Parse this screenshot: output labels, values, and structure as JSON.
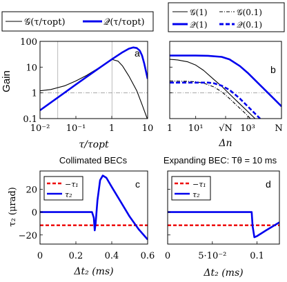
{
  "chart_data": [
    {
      "id": "a",
      "type": "line",
      "panel_label": "a",
      "ylabel": "Gain",
      "xlabel": "τ/τopt",
      "xscale": "log",
      "yscale": "log",
      "xlim": [
        0.01,
        10
      ],
      "ylim": [
        0.1,
        100
      ],
      "x_ticks": [
        "10⁻²",
        "10⁻¹",
        "1",
        "10"
      ],
      "y_ticks": [
        "0.1",
        "1",
        "10",
        "100"
      ],
      "grid": "vertical lines at 0.1 and 1",
      "legend_position": "top (outside)",
      "legend": [
        "𝒢(τ/τopt)",
        "𝒬(τ/τopt)"
      ],
      "reference_line": {
        "y": 1,
        "style": "dash-dot gray"
      },
      "series": [
        {
          "name": "𝒢(τ/τopt)",
          "color": "#000000",
          "x": [
            0.01,
            0.02,
            0.05,
            0.1,
            0.2,
            0.5,
            1,
            1.5,
            2,
            3,
            5,
            7,
            10
          ],
          "y": [
            1.2,
            1.35,
            1.9,
            2.9,
            4.8,
            10.5,
            20,
            17,
            11,
            4.5,
            1.2,
            0.35,
            0.09
          ]
        },
        {
          "name": "𝒬(τ/τopt)",
          "color": "#0000ee",
          "x": [
            0.01,
            0.02,
            0.05,
            0.1,
            0.2,
            0.5,
            1,
            2,
            3,
            4,
            5,
            6,
            7,
            8,
            10
          ],
          "y": [
            0.21,
            0.42,
            1.05,
            2.1,
            4.2,
            10.3,
            20,
            38,
            52,
            58,
            55,
            44,
            28,
            14,
            3.5
          ]
        }
      ]
    },
    {
      "id": "b",
      "type": "line",
      "panel_label": "b",
      "xlabel": "Δn",
      "xscale": "log",
      "yscale": "log",
      "xlim": [
        1,
        20000
      ],
      "ylim": [
        0.1,
        100
      ],
      "x_ticks": [
        "1",
        "10¹",
        "√N",
        "10³",
        "N"
      ],
      "legend_position": "top (outside)",
      "legend": [
        "𝒢(1)",
        "𝒢(0.1)",
        "𝒬(1)",
        "𝒬(0.1)"
      ],
      "reference_line": {
        "y": 1,
        "style": "dash-dot gray"
      },
      "series": [
        {
          "name": "𝒢(1)",
          "color": "#000000",
          "style": "solid thin",
          "x": [
            1,
            2,
            5,
            10,
            20,
            50,
            100,
            200,
            500,
            1000,
            3000
          ],
          "y": [
            20,
            19,
            16,
            12,
            7.5,
            3.3,
            1.8,
            0.9,
            0.37,
            0.19,
            0.065
          ]
        },
        {
          "name": "𝒢(0.1)",
          "color": "#000000",
          "style": "dash-dot thin",
          "x": [
            1,
            5,
            10,
            20,
            50,
            100,
            200,
            500,
            1000,
            2000
          ],
          "y": [
            2.9,
            2.8,
            2.7,
            2.4,
            1.7,
            1.1,
            0.6,
            0.25,
            0.13,
            0.06
          ]
        },
        {
          "name": "𝒬(1)",
          "color": "#0000ee",
          "style": "solid thick",
          "x": [
            1,
            10,
            30,
            100,
            200,
            500,
            1000,
            3000,
            10000,
            20000
          ],
          "y": [
            28,
            28,
            27.5,
            25,
            20,
            11,
            6,
            2,
            0.6,
            0.3
          ]
        },
        {
          "name": "𝒬(0.1)",
          "color": "#0000ee",
          "style": "dashed thick",
          "x": [
            1,
            10,
            30,
            50,
            100,
            200,
            500,
            1000,
            2000,
            3000
          ],
          "y": [
            2.5,
            2.5,
            2.5,
            2.35,
            1.9,
            1.3,
            0.6,
            0.3,
            0.15,
            0.1
          ]
        }
      ]
    },
    {
      "id": "c",
      "type": "line",
      "title": "Collimated BECs",
      "panel_label": "c",
      "ylabel": "τ₂ (μrad)",
      "xlabel": "Δt₂ (ms)",
      "xlim": [
        0,
        0.6
      ],
      "ylim": [
        -28,
        36
      ],
      "x_ticks": [
        "0",
        "0.2",
        "0.4",
        "0.6"
      ],
      "y_ticks": [
        "−20",
        "0",
        "20"
      ],
      "legend_position": "top-left",
      "legend": [
        "−τ₁",
        "τ₂"
      ],
      "series": [
        {
          "name": "−τ₁",
          "color": "#ee0000",
          "style": "dashed",
          "x": [
            0,
            0.6
          ],
          "y": [
            -11.5,
            -11.5
          ]
        },
        {
          "name": "τ₂",
          "color": "#0000ee",
          "x": [
            0,
            0.29,
            0.3,
            0.305,
            0.31,
            0.32,
            0.335,
            0.35,
            0.37,
            0.4,
            0.45,
            0.5,
            0.55,
            0.6
          ],
          "y": [
            0,
            0,
            -5,
            -16,
            -10,
            10,
            28,
            32,
            30,
            22,
            9,
            -4,
            -15,
            -24
          ]
        }
      ]
    },
    {
      "id": "d",
      "type": "line",
      "title": "Expanding BEC: Tθ = 10 ms",
      "panel_label": "d",
      "xlabel": "Δt₂ (ms)",
      "xlim": [
        0,
        0.125
      ],
      "ylim": [
        -28,
        36
      ],
      "x_ticks": [
        "0",
        "5·10⁻²",
        "0.1"
      ],
      "legend_position": "top-left",
      "legend": [
        "−τ₁",
        "τ₂"
      ],
      "series": [
        {
          "name": "−τ₁",
          "color": "#ee0000",
          "style": "dashed",
          "x": [
            0,
            0.125
          ],
          "y": [
            -11.5,
            -11.5
          ]
        },
        {
          "name": "τ₂",
          "color": "#0000ee",
          "x": [
            0,
            0.094,
            0.095,
            0.097,
            0.1,
            0.11,
            0.125
          ],
          "y": [
            0,
            0,
            -12,
            -22,
            -21,
            -16,
            -9
          ]
        }
      ]
    }
  ]
}
